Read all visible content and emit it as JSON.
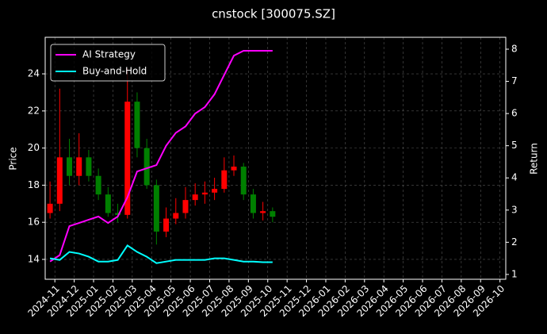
{
  "chart_data": {
    "type": "candlestick-lines",
    "title": "cnstock [300075.SZ]",
    "ylabel": "Price",
    "y2label": "Return",
    "x": [
      -0.25,
      0.25,
      0.75,
      1.25,
      1.75,
      2.25,
      2.75,
      3.25,
      3.75,
      4.25,
      4.75,
      5.25,
      5.75,
      6.25,
      6.75,
      7.25,
      7.75,
      8.25,
      8.75,
      9.25,
      9.75,
      10.25,
      10.75,
      11.25
    ],
    "open": [
      16.5,
      17.0,
      19.5,
      18.5,
      19.5,
      18.5,
      17.5,
      16.5,
      16.4,
      22.5,
      20.0,
      18.0,
      15.5,
      16.2,
      16.5,
      17.2,
      17.5,
      17.6,
      17.8,
      18.8,
      19.0,
      17.5,
      16.5,
      16.6
    ],
    "high": [
      18.2,
      23.2,
      20.5,
      20.8,
      19.9,
      18.9,
      17.9,
      17.0,
      24.3,
      23.0,
      20.5,
      18.3,
      16.8,
      17.3,
      17.9,
      18.1,
      18.2,
      18.4,
      19.5,
      19.6,
      19.2,
      17.8,
      17.1,
      16.8
    ],
    "low": [
      16.2,
      16.6,
      18.0,
      18.0,
      18.2,
      17.2,
      16.3,
      16.0,
      16.2,
      19.5,
      17.8,
      14.8,
      15.2,
      15.9,
      16.2,
      16.9,
      17.0,
      17.2,
      17.6,
      18.5,
      17.2,
      16.2,
      16.1,
      16.0
    ],
    "close": [
      17.0,
      19.5,
      18.5,
      19.5,
      18.5,
      17.5,
      16.5,
      16.4,
      22.5,
      20.0,
      18.0,
      15.5,
      16.2,
      16.5,
      17.2,
      17.5,
      17.6,
      17.8,
      18.8,
      19.0,
      17.5,
      16.5,
      16.6,
      16.3
    ],
    "up_color": "#ff0000",
    "down_color": "#008000",
    "series": [
      {
        "name": "AI Strategy",
        "color": "#ff00ff",
        "axis": "y2",
        "values": [
          1.4,
          1.6,
          2.5,
          2.6,
          2.7,
          2.8,
          2.6,
          2.8,
          3.4,
          4.2,
          4.3,
          4.4,
          5.0,
          5.4,
          5.6,
          6.0,
          6.2,
          6.6,
          7.2,
          7.8,
          7.95,
          7.95,
          7.95,
          7.95
        ]
      },
      {
        "name": "Buy-and-Hold",
        "color": "#00ffff",
        "axis": "y2",
        "values": [
          1.5,
          1.45,
          1.7,
          1.65,
          1.55,
          1.4,
          1.4,
          1.45,
          1.9,
          1.7,
          1.55,
          1.35,
          1.4,
          1.45,
          1.45,
          1.45,
          1.45,
          1.5,
          1.5,
          1.45,
          1.4,
          1.4,
          1.38,
          1.38
        ]
      }
    ],
    "xlim": [
      -0.5,
      23.3
    ],
    "ylim": [
      12.93,
      25.97
    ],
    "y2lim": [
      0.85,
      8.37
    ],
    "xticks": [
      {
        "value": 0,
        "label": "2024-11"
      },
      {
        "value": 1,
        "label": "2024-12"
      },
      {
        "value": 2,
        "label": "2025-01"
      },
      {
        "value": 3,
        "label": "2025-02"
      },
      {
        "value": 4,
        "label": "2025-03"
      },
      {
        "value": 5,
        "label": "2025-04"
      },
      {
        "value": 6,
        "label": "2025-05"
      },
      {
        "value": 7,
        "label": "2025-06"
      },
      {
        "value": 8,
        "label": "2025-07"
      },
      {
        "value": 9,
        "label": "2025-08"
      },
      {
        "value": 10,
        "label": "2025-09"
      },
      {
        "value": 11,
        "label": "2025-10"
      },
      {
        "value": 12,
        "label": "2025-11"
      },
      {
        "value": 13,
        "label": "2025-12"
      },
      {
        "value": 14,
        "label": "2026-01"
      },
      {
        "value": 15,
        "label": "2026-02"
      },
      {
        "value": 16,
        "label": "2026-03"
      },
      {
        "value": 17,
        "label": "2026-04"
      },
      {
        "value": 18,
        "label": "2026-05"
      },
      {
        "value": 19,
        "label": "2026-06"
      },
      {
        "value": 20,
        "label": "2026-07"
      },
      {
        "value": 21,
        "label": "2026-08"
      },
      {
        "value": 22,
        "label": "2026-09"
      },
      {
        "value": 23,
        "label": "2026-10"
      }
    ],
    "yticks": [
      14,
      16,
      18,
      20,
      22,
      24
    ],
    "y2ticks": [
      1,
      2,
      3,
      4,
      5,
      6,
      7,
      8
    ],
    "grid": true,
    "legend": "upper left"
  }
}
